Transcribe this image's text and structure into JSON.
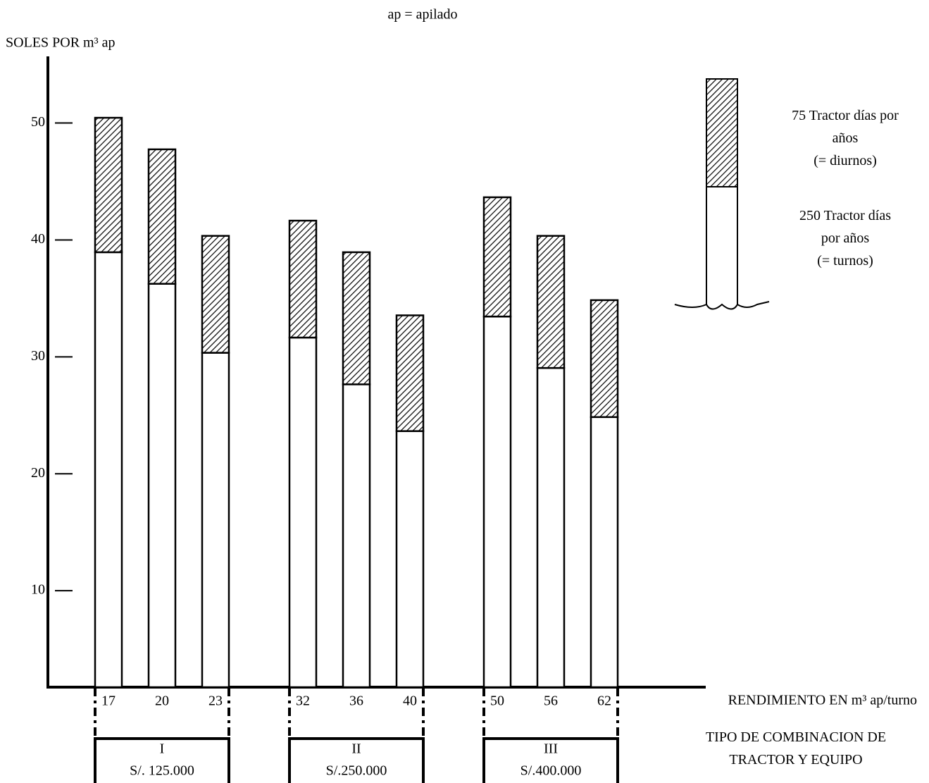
{
  "chart_data": {
    "type": "stacked_bar",
    "title": "ap = apilado",
    "y_label": "SOLES POR m³ ap",
    "x_label": "RENDIMIENTO EN m³ ap/turno",
    "group_axis_label": "TIPO DE COMBINACION DE\nTRACTOR Y EQUIPO",
    "categories": [
      "17",
      "20",
      "23",
      "32",
      "36",
      "40",
      "50",
      "56",
      "62"
    ],
    "groups": [
      {
        "name": "I",
        "label": "S/. 125.000"
      },
      {
        "name": "II",
        "label": "S/.250.000"
      },
      {
        "name": "III",
        "label": "S/.400.000"
      }
    ],
    "series": [
      {
        "name": "250 Tractor días\npor años\n(= turnos)",
        "color": "#ffffff",
        "hatch": false,
        "values": [
          37.2,
          34.5,
          28.6,
          29.9,
          25.9,
          21.9,
          31.7,
          27.3,
          23.1
        ]
      },
      {
        "name": "75  Tractor días por\naños\n(= diurnos)",
        "color": "#000000",
        "hatch": true,
        "values": [
          11.5,
          11.5,
          10.0,
          10.0,
          11.3,
          9.9,
          10.2,
          11.3,
          10.0
        ]
      }
    ],
    "ylim": [
      1.75,
      55.7
    ],
    "yticks": [
      10,
      20,
      30,
      40,
      50
    ],
    "grid": false
  }
}
